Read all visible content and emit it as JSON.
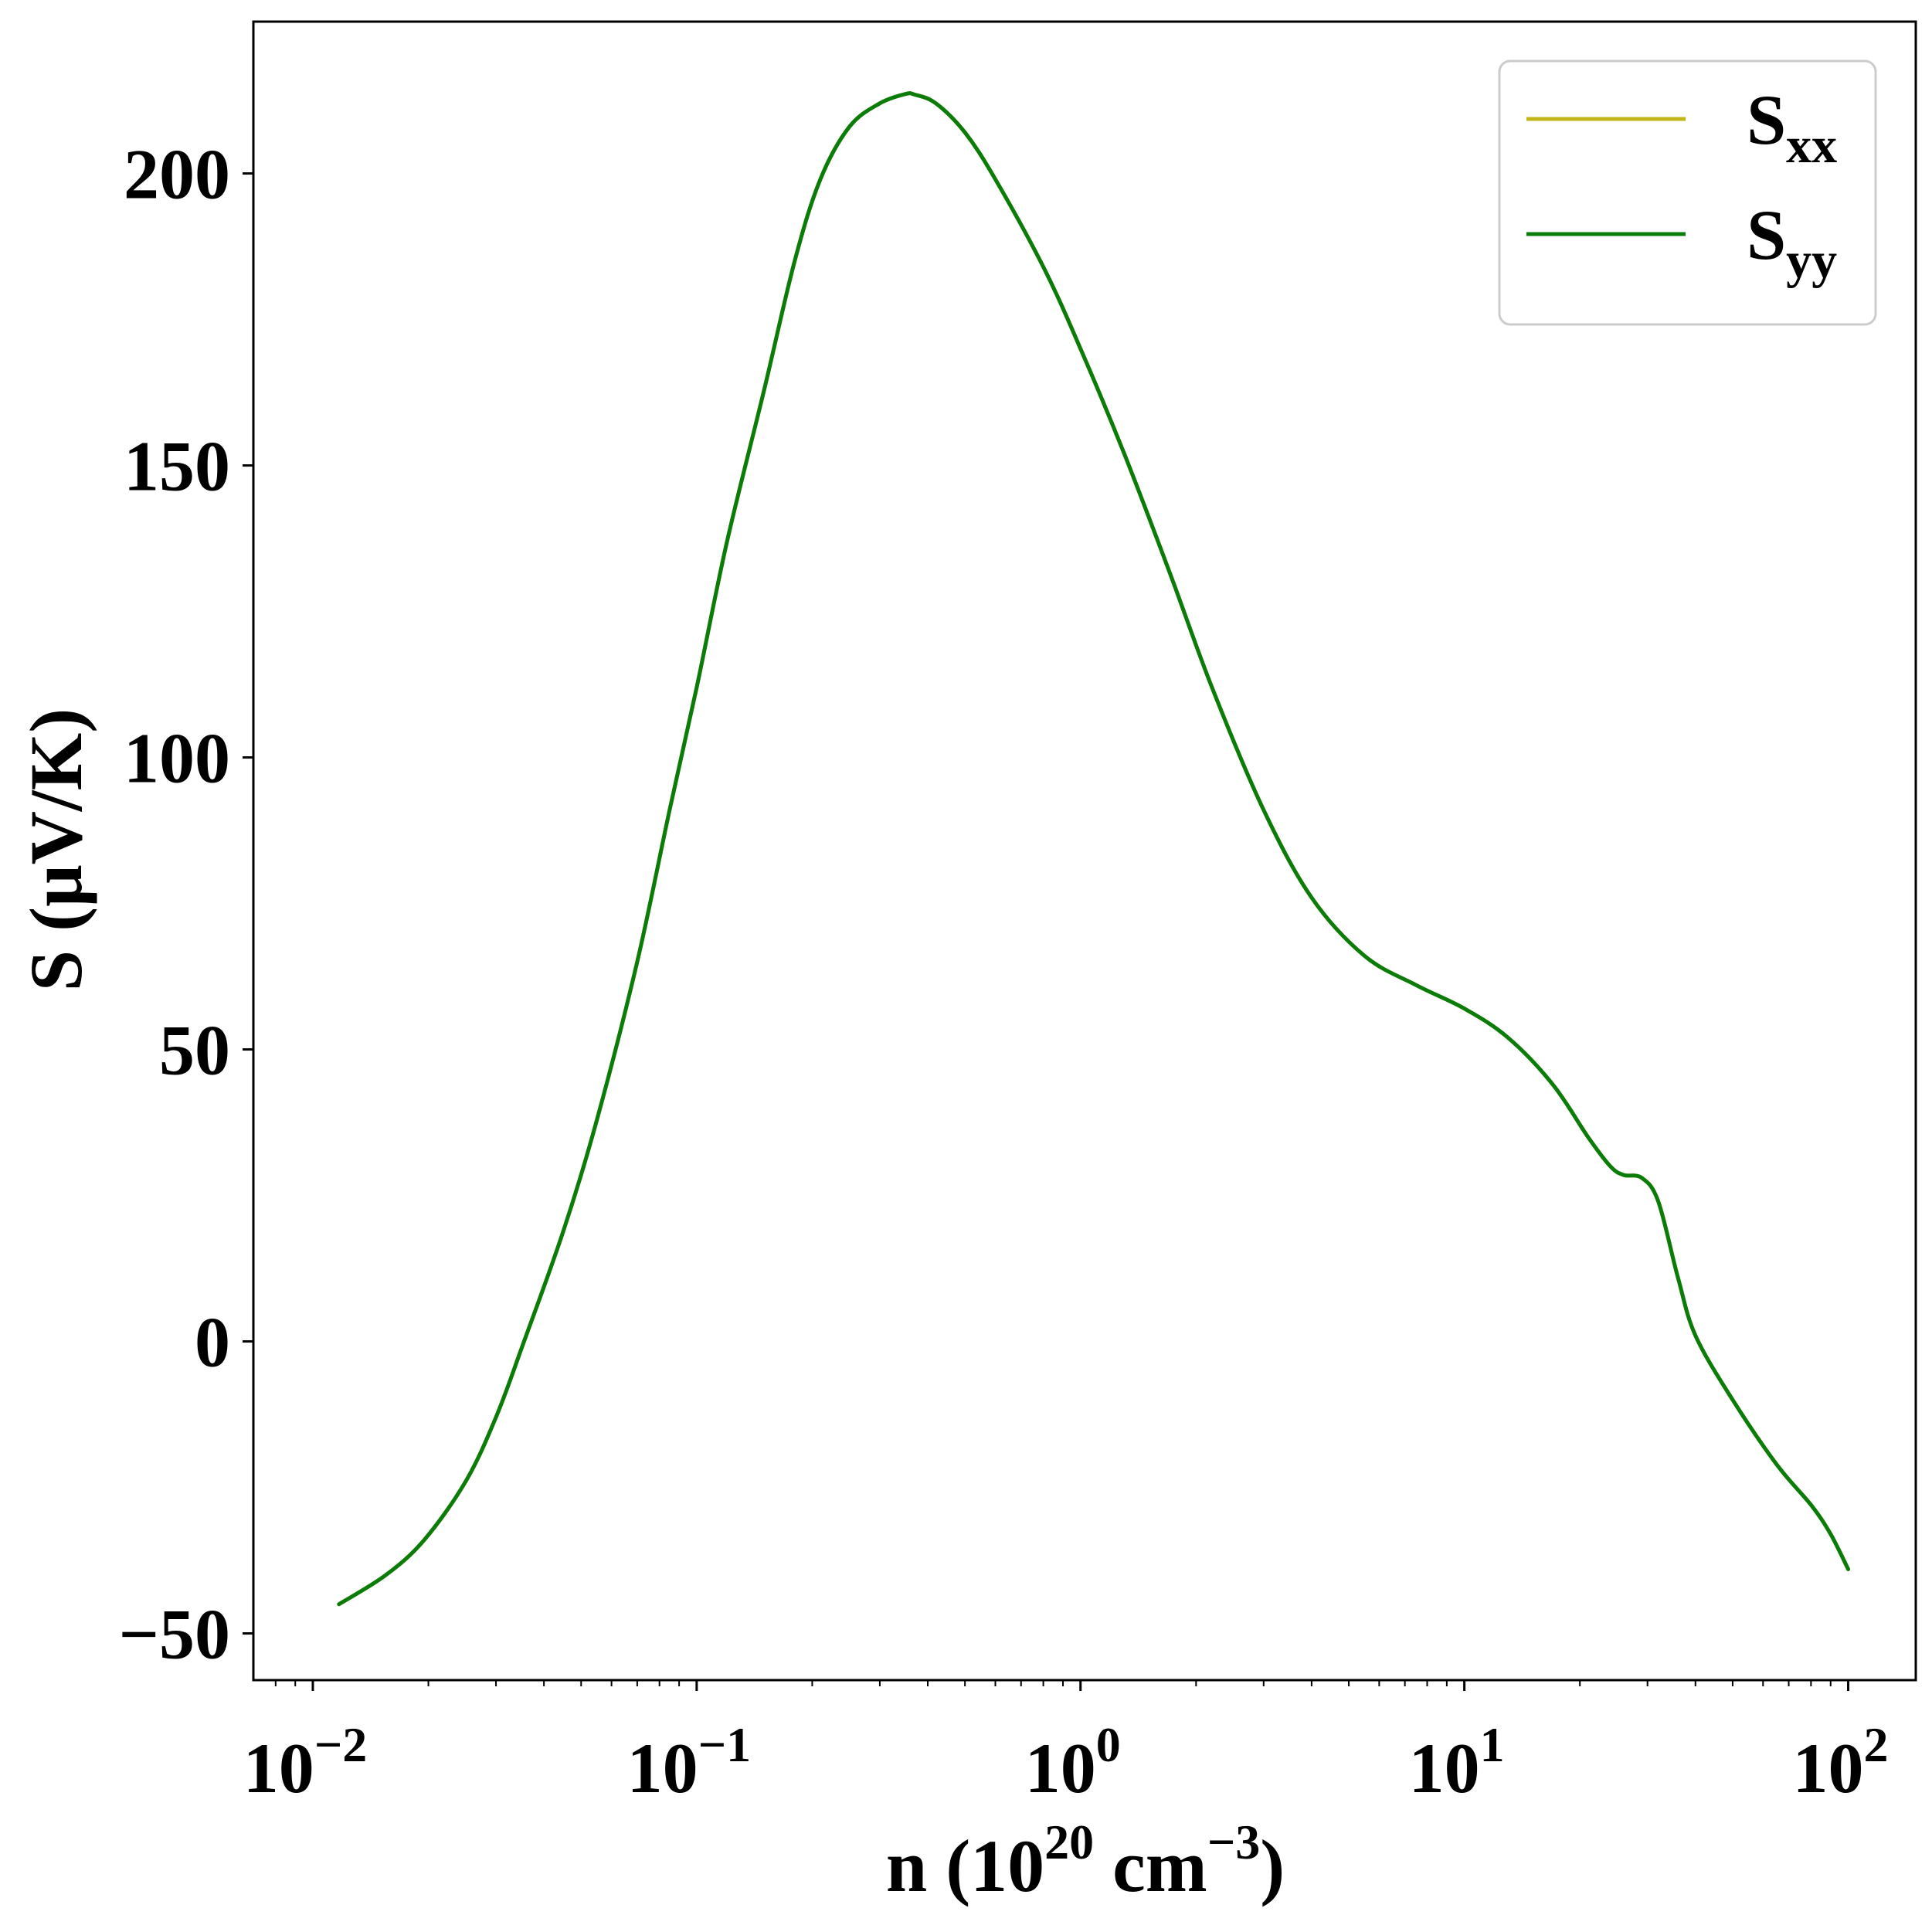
{
  "chart_data": {
    "type": "line",
    "xscale": "log",
    "xlim": [
      0.007,
      150
    ],
    "ylim": [
      -58,
      226
    ],
    "grid": false,
    "legend_placement": "top-right",
    "title": "",
    "xlabel": {
      "main": "n (10",
      "sup1": "20",
      "mid": " cm",
      "sup2": "−3",
      "end": ")"
    },
    "ylabel": "S (μV/K)",
    "x_ticks": [
      {
        "value": 0.01,
        "base": "10",
        "exp": "−2"
      },
      {
        "value": 0.1,
        "base": "10",
        "exp": "−1"
      },
      {
        "value": 1,
        "base": "10",
        "exp": "0"
      },
      {
        "value": 10,
        "base": "10",
        "exp": "1"
      },
      {
        "value": 100,
        "base": "10",
        "exp": "2"
      }
    ],
    "y_ticks": [
      {
        "value": -50,
        "label": "−50"
      },
      {
        "value": 0,
        "label": "0"
      },
      {
        "value": 50,
        "label": "50"
      },
      {
        "value": 100,
        "label": "100"
      },
      {
        "value": 150,
        "label": "150"
      },
      {
        "value": 200,
        "label": "200"
      }
    ],
    "x": [
      0.0117,
      0.0155,
      0.0195,
      0.025,
      0.03,
      0.0355,
      0.045,
      0.055,
      0.07,
      0.085,
      0.1,
      0.12,
      0.15,
      0.18,
      0.21,
      0.25,
      0.3,
      0.35,
      0.37,
      0.42,
      0.5,
      0.6,
      0.8,
      1.0,
      1.3,
      1.7,
      2.2,
      3.0,
      4.0,
      5.5,
      7.5,
      10,
      13,
      17,
      21,
      24,
      26,
      29,
      32,
      36,
      40,
      50,
      65,
      80,
      90,
      100
    ],
    "series": [
      {
        "name": "S",
        "sub": "xx",
        "color": "#c2b61a",
        "values": [
          -45,
          -40,
          -34,
          -24,
          -13,
          0,
          19,
          38,
          65,
          91,
          112,
          137,
          163,
          185,
          199,
          208,
          212,
          213.6,
          213.5,
          212,
          207,
          199,
          184,
          170,
          152,
          132,
          112,
          91,
          76,
          66,
          61,
          57,
          52,
          44,
          35,
          30,
          28.5,
          28,
          24,
          11,
          1,
          -10,
          -21,
          -28,
          -33,
          -39
        ]
      },
      {
        "name": "S",
        "sub": "yy",
        "color": "#0a7c0a",
        "values": [
          -45,
          -40,
          -34,
          -24,
          -13,
          0,
          19,
          38,
          65,
          91,
          112,
          137,
          163,
          185,
          199,
          208,
          212,
          213.6,
          213.5,
          212,
          207,
          199,
          184,
          170,
          152,
          132,
          112,
          91,
          76,
          66,
          61,
          57,
          52,
          44,
          35,
          30,
          28.5,
          28,
          24,
          11,
          1,
          -10,
          -21,
          -28,
          -33,
          -39
        ]
      }
    ]
  }
}
